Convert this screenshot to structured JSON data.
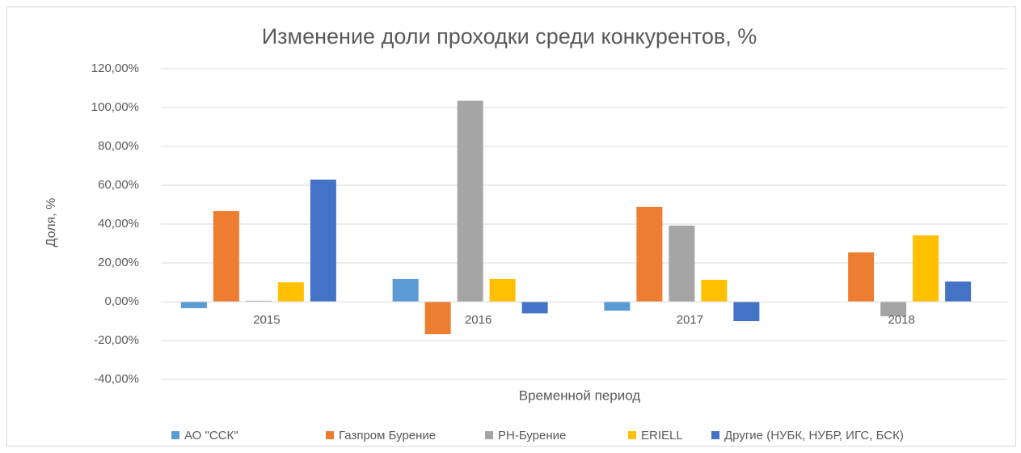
{
  "chart_data": {
    "type": "bar",
    "title": "Изменение доли проходки среди конкурентов, %",
    "y_axis_label": "Доля, %",
    "x_axis_label": "Временной период",
    "categories": [
      "2015",
      "2016",
      "2017",
      "2018"
    ],
    "series": [
      {
        "name": "АО \"ССК\"",
        "color": "#5b9bd5",
        "values": [
          -3.3,
          11.7,
          -4.6,
          0
        ]
      },
      {
        "name": "Газпром Бурение",
        "color": "#ed7d31",
        "values": [
          46.7,
          -16.7,
          48.8,
          25.4
        ]
      },
      {
        "name": "РН-Бурение",
        "color": "#a5a5a5",
        "values": [
          0.5,
          103.5,
          39.2,
          -7.5
        ]
      },
      {
        "name": "ERIELL",
        "color": "#ffc000",
        "values": [
          10,
          11.7,
          11.3,
          34.2
        ]
      },
      {
        "name": "Другие (НУБК, НУБР, ИГС, БСК)",
        "color": "#4472c4",
        "values": [
          62.9,
          -6,
          -10,
          10.4
        ]
      }
    ],
    "ylim": [
      -40,
      120
    ],
    "yticks": [
      {
        "value": -40,
        "label": "-40,00%"
      },
      {
        "value": -20,
        "label": "-20,00%"
      },
      {
        "value": 0,
        "label": "0,00%"
      },
      {
        "value": 20,
        "label": "20,00%"
      },
      {
        "value": 40,
        "label": "40,00%"
      },
      {
        "value": 60,
        "label": "60,00%"
      },
      {
        "value": 80,
        "label": "80,00%"
      },
      {
        "value": 100,
        "label": "100,00%"
      },
      {
        "value": 120,
        "label": "120,00%"
      }
    ],
    "grid": true,
    "legend": "bottom"
  }
}
